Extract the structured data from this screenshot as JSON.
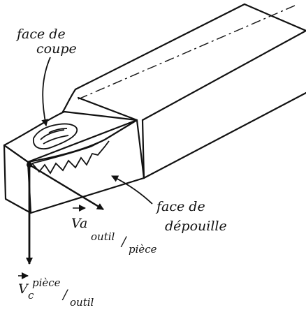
{
  "labels": {
    "rake_face_line1": "face de",
    "rake_face_line2": "coupe",
    "flank_face_line1": "face de",
    "flank_face_line2": "dépouille",
    "va_symbol": "Va",
    "va_sub": "outil",
    "va_sub_slash": "/",
    "va_sub2": "pièce",
    "vc_symbol": "V",
    "vc_sub": "c",
    "vc_super": "pièce",
    "vc_slash": "/",
    "vc_sub2": "outil"
  },
  "colors": {
    "ink": "#111111",
    "paper": "#ffffff"
  }
}
